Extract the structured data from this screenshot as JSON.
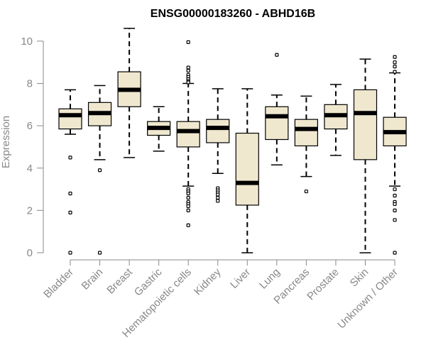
{
  "chart_data": {
    "type": "box",
    "title": "ENSG00000183260 - ABHD16B",
    "xlabel": "",
    "ylabel": "Expression",
    "ylim": [
      0,
      10.6
    ],
    "yticks": [
      0,
      2,
      4,
      6,
      8,
      10
    ],
    "grid": false,
    "legend": "none",
    "colors": {
      "box_fill": "#efe8cf",
      "stroke": "#000000",
      "axis": "#888888"
    },
    "categories": [
      "Bladder",
      "Brain",
      "Breast",
      "Gastric",
      "Hematopoietic cells",
      "Kidney",
      "Liver",
      "Lung",
      "Pancreas",
      "Prostate",
      "Skin",
      "Unknown / Other"
    ],
    "boxes": [
      {
        "category": "Bladder",
        "q1": 5.85,
        "median": 6.5,
        "q3": 6.8,
        "whisker_low": 5.6,
        "whisker_high": 7.7,
        "outliers": [
          4.5,
          2.8,
          1.9,
          0.0
        ]
      },
      {
        "category": "Brain",
        "q1": 6.0,
        "median": 6.6,
        "q3": 7.1,
        "whisker_low": 4.4,
        "whisker_high": 7.9,
        "outliers": [
          3.9,
          0.0
        ]
      },
      {
        "category": "Breast",
        "q1": 6.9,
        "median": 7.7,
        "q3": 8.55,
        "whisker_low": 4.5,
        "whisker_high": 10.6,
        "outliers": []
      },
      {
        "category": "Gastric",
        "q1": 5.55,
        "median": 5.9,
        "q3": 6.2,
        "whisker_low": 4.8,
        "whisker_high": 6.9,
        "outliers": []
      },
      {
        "category": "Hematopoietic cells",
        "q1": 5.0,
        "median": 5.75,
        "q3": 6.2,
        "whisker_low": 3.15,
        "whisker_high": 8.0,
        "outliers": [
          9.95,
          8.75,
          8.6,
          8.4,
          8.3,
          8.2,
          8.1,
          8.05,
          3.0,
          2.9,
          2.8,
          2.6,
          2.4,
          2.3,
          2.2,
          2.0,
          1.3
        ]
      },
      {
        "category": "Kidney",
        "q1": 5.2,
        "median": 5.9,
        "q3": 6.3,
        "whisker_low": 3.75,
        "whisker_high": 7.75,
        "outliers": [
          3.05,
          2.95,
          2.85,
          2.75,
          2.6,
          2.45
        ]
      },
      {
        "category": "Liver",
        "q1": 2.25,
        "median": 3.3,
        "q3": 5.65,
        "whisker_low": 0.0,
        "whisker_high": 7.75,
        "outliers": []
      },
      {
        "category": "Lung",
        "q1": 5.35,
        "median": 6.45,
        "q3": 6.9,
        "whisker_low": 4.15,
        "whisker_high": 7.45,
        "outliers": [
          9.35
        ]
      },
      {
        "category": "Pancreas",
        "q1": 5.05,
        "median": 5.85,
        "q3": 6.3,
        "whisker_low": 3.6,
        "whisker_high": 7.4,
        "outliers": [
          2.9
        ]
      },
      {
        "category": "Prostate",
        "q1": 5.85,
        "median": 6.5,
        "q3": 7.0,
        "whisker_low": 4.6,
        "whisker_high": 7.95,
        "outliers": []
      },
      {
        "category": "Skin",
        "q1": 4.4,
        "median": 6.6,
        "q3": 7.7,
        "whisker_low": 0.0,
        "whisker_high": 9.15,
        "outliers": []
      },
      {
        "category": "Unknown / Other",
        "q1": 5.05,
        "median": 5.7,
        "q3": 6.4,
        "whisker_low": 3.15,
        "whisker_high": 8.5,
        "outliers": [
          9.25,
          9.0,
          8.8,
          8.55,
          3.0,
          2.7,
          2.4,
          2.3,
          2.0,
          1.55,
          0.0
        ]
      }
    ]
  }
}
